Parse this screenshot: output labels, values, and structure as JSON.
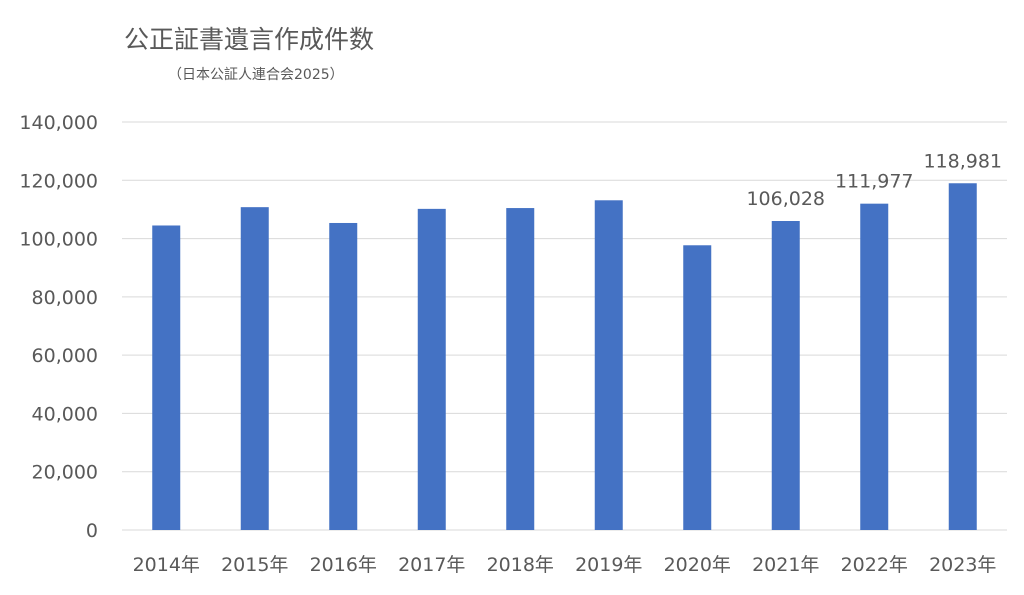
{
  "chart_data": {
    "type": "bar",
    "title": "公正証書遺言作成件数",
    "subtitle": "（日本公証人連合会2025）",
    "categories": [
      "2014年",
      "2015年",
      "2016年",
      "2017年",
      "2018年",
      "2019年",
      "2020年",
      "2021年",
      "2022年",
      "2023年"
    ],
    "series": [
      {
        "values": [
          104490,
          110778,
          105350,
          110191,
          110471,
          113137,
          97700,
          106028,
          111977,
          118981
        ]
      }
    ],
    "data_labels": [
      {
        "category": "2021年",
        "text": "106,028"
      },
      {
        "category": "2022年",
        "text": "111,977"
      },
      {
        "category": "2023年",
        "text": "118,981"
      }
    ],
    "y_ticks": [
      "0",
      "20,000",
      "40,000",
      "60,000",
      "80,000",
      "100,000",
      "120,000",
      "140,000"
    ],
    "ylim": [
      0,
      140000
    ],
    "grid": true,
    "legend": "none",
    "colors": {
      "bar": "#4472C4",
      "grid": "#D9D9D9",
      "text": "#595959"
    }
  }
}
